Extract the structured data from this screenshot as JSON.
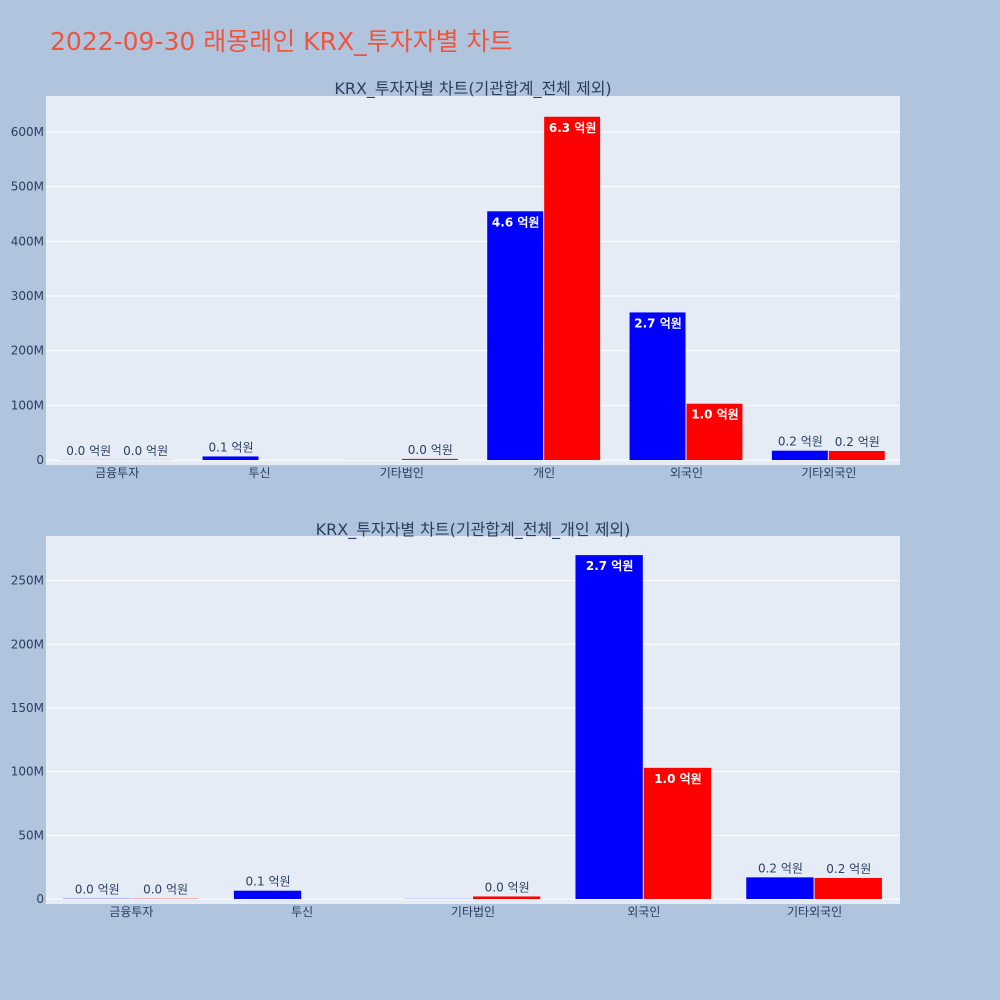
{
  "title": "2022-09-30 래몽래인 KRX_투자자별 차트",
  "colors": {
    "buy": "#0000ff",
    "sell": "#ff0000",
    "plot_bg": "#e5ecf6",
    "page_bg": "#b0c4de"
  },
  "chart_data": [
    {
      "type": "bar",
      "title": "KRX_투자자별 차트(기관합계_전체 제외)",
      "categories": [
        "금융투자",
        "투신",
        "기타법인",
        "개인",
        "외국인",
        "기타외국인"
      ],
      "series": [
        {
          "values": [
            0.2,
            6.5,
            0.1,
            455,
            270,
            17
          ],
          "labels": [
            "0.0 억원",
            "0.1 억원",
            "",
            "4.6 억원",
            "2.7 억원",
            "0.2 억원"
          ]
        },
        {
          "values": [
            0.2,
            0,
            2,
            628,
            103,
            16.5
          ],
          "labels": [
            "0.0 억원",
            "",
            "0.0 억원",
            "6.3 억원",
            "1.0 억원",
            "0.2 억원"
          ]
        }
      ],
      "yticks": [
        0,
        100,
        200,
        300,
        400,
        500,
        600
      ],
      "ytick_labels": [
        "0",
        "100M",
        "200M",
        "300M",
        "400M",
        "500M",
        "600M"
      ],
      "ylim": [
        0,
        666
      ],
      "grid": true
    },
    {
      "type": "bar",
      "title": "KRX_투자자별 차트(기관합계_전체_개인 제외)",
      "categories": [
        "금융투자",
        "투신",
        "기타법인",
        "외국인",
        "기타외국인"
      ],
      "series": [
        {
          "values": [
            0.2,
            6.5,
            0.1,
            270,
            17
          ],
          "labels": [
            "0.0 억원",
            "0.1 억원",
            "",
            "2.7 억원",
            "0.2 억원"
          ]
        },
        {
          "values": [
            0.2,
            0,
            2,
            103,
            16.5
          ],
          "labels": [
            "0.0 억원",
            "",
            "0.0 억원",
            "1.0 억원",
            "0.2 억원"
          ]
        }
      ],
      "yticks": [
        0,
        50,
        100,
        150,
        200,
        250
      ],
      "ytick_labels": [
        "0",
        "50M",
        "100M",
        "150M",
        "200M",
        "250M"
      ],
      "ylim": [
        0,
        285
      ],
      "grid": true
    }
  ]
}
